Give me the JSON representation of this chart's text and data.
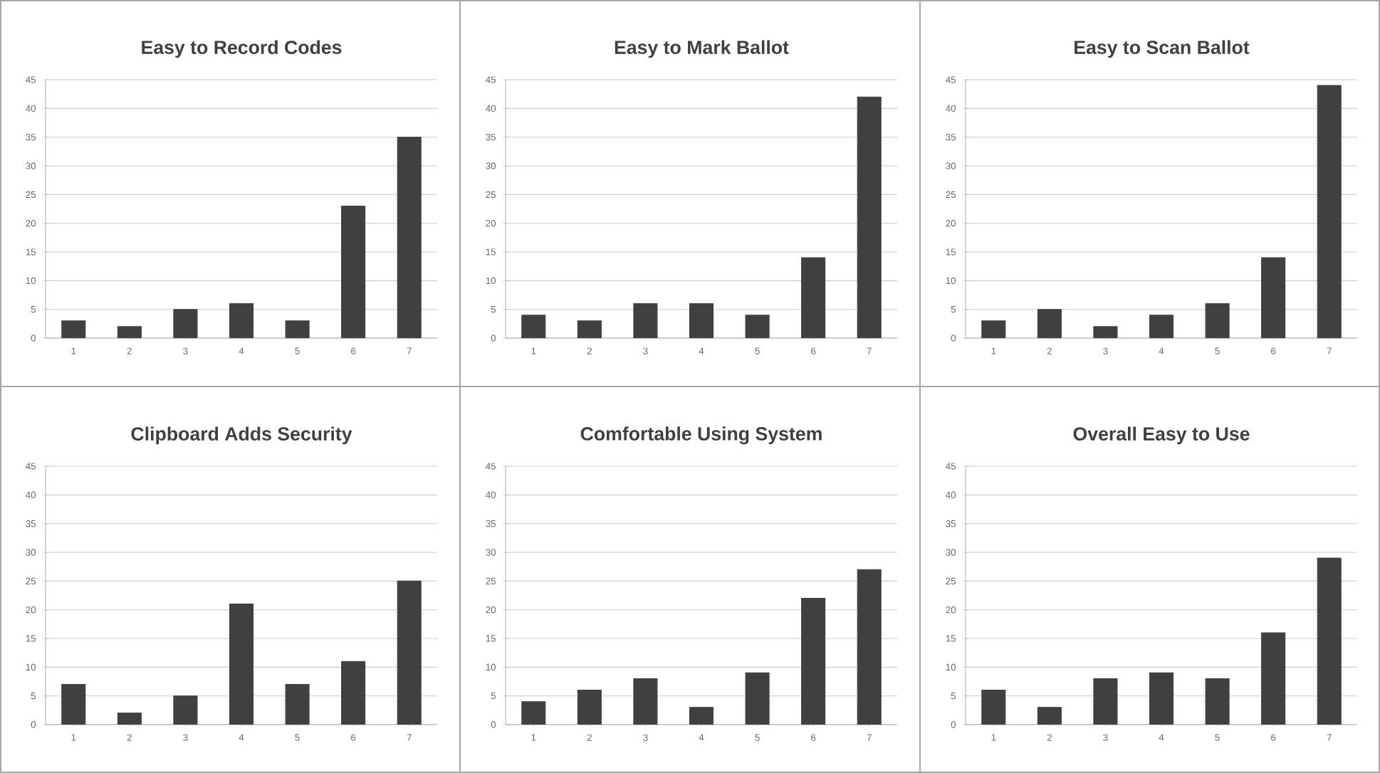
{
  "chart_data": [
    {
      "type": "bar",
      "title": "Easy to Record Codes",
      "categories": [
        "1",
        "2",
        "3",
        "4",
        "5",
        "6",
        "7"
      ],
      "values": [
        3,
        2,
        5,
        6,
        3,
        23,
        35
      ],
      "color": "#404040",
      "ylim": [
        0,
        45
      ],
      "yticks": [
        0,
        5,
        10,
        15,
        20,
        25,
        30,
        35,
        40,
        45
      ],
      "grid": "y"
    },
    {
      "type": "bar",
      "title": "Easy to Mark Ballot",
      "categories": [
        "1",
        "2",
        "3",
        "4",
        "5",
        "6",
        "7"
      ],
      "values": [
        4,
        3,
        6,
        6,
        4,
        14,
        42
      ],
      "color": "#404040",
      "ylim": [
        0,
        45
      ],
      "yticks": [
        0,
        5,
        10,
        15,
        20,
        25,
        30,
        35,
        40,
        45
      ],
      "grid": "y"
    },
    {
      "type": "bar",
      "title": "Easy to Scan Ballot",
      "categories": [
        "1",
        "2",
        "3",
        "4",
        "5",
        "6",
        "7"
      ],
      "values": [
        3,
        5,
        2,
        4,
        6,
        14,
        44
      ],
      "color": "#404040",
      "ylim": [
        0,
        45
      ],
      "yticks": [
        0,
        5,
        10,
        15,
        20,
        25,
        30,
        35,
        40,
        45
      ],
      "grid": "y"
    },
    {
      "type": "bar",
      "title": "Clipboard Adds Security",
      "categories": [
        "1",
        "2",
        "3",
        "4",
        "5",
        "6",
        "7"
      ],
      "values": [
        7,
        2,
        5,
        21,
        7,
        11,
        25
      ],
      "color": "#404040",
      "ylim": [
        0,
        45
      ],
      "yticks": [
        0,
        5,
        10,
        15,
        20,
        25,
        30,
        35,
        40,
        45
      ],
      "grid": "y"
    },
    {
      "type": "bar",
      "title": "Comfortable Using System",
      "categories": [
        "1",
        "2",
        "3",
        "4",
        "5",
        "6",
        "7"
      ],
      "values": [
        4,
        6,
        8,
        3,
        9,
        22,
        27
      ],
      "color": "#404040",
      "ylim": [
        0,
        45
      ],
      "yticks": [
        0,
        5,
        10,
        15,
        20,
        25,
        30,
        35,
        40,
        45
      ],
      "grid": "y"
    },
    {
      "type": "bar",
      "title": "Overall Easy to Use",
      "categories": [
        "1",
        "2",
        "3",
        "4",
        "5",
        "6",
        "7"
      ],
      "values": [
        6,
        3,
        8,
        9,
        8,
        16,
        29
      ],
      "color": "#404040",
      "ylim": [
        0,
        45
      ],
      "yticks": [
        0,
        5,
        10,
        15,
        20,
        25,
        30,
        35,
        40,
        45
      ],
      "grid": "y"
    }
  ]
}
